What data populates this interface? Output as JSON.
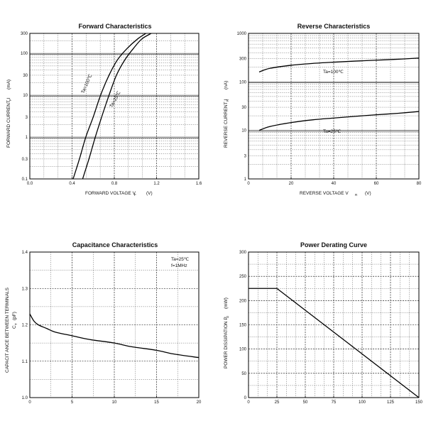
{
  "chart_data": [
    {
      "type": "line",
      "title": "Forward   Characteristics",
      "xlabel": "FORWARD VOLTAGE  V",
      "xlabel_sub": "F",
      "xlabel_unit": "(V)",
      "ylabel": "FORWARD CURRENT  I",
      "ylabel_sub": "F",
      "ylabel_unit": "(mA)",
      "xlim": [
        0,
        1.6
      ],
      "ylim": [
        0.1,
        300
      ],
      "yscale": "log",
      "x_ticks": [
        "0.0",
        "0.4",
        "0.8",
        "1.2",
        "1.6"
      ],
      "y_ticks": [
        "0.1",
        "0.3",
        "1",
        "3",
        "10",
        "30",
        "100",
        "300"
      ],
      "series": [
        {
          "name": "Ta=100℃",
          "x": [
            0.41,
            0.47,
            0.53,
            0.6,
            0.67,
            0.75,
            0.83,
            0.92,
            1.02,
            1.1
          ],
          "y": [
            0.1,
            0.3,
            1,
            3,
            10,
            30,
            70,
            130,
            220,
            300
          ]
        },
        {
          "name": "Ta=25℃",
          "x": [
            0.5,
            0.56,
            0.62,
            0.68,
            0.75,
            0.82,
            0.9,
            0.98,
            1.06,
            1.15
          ],
          "y": [
            0.1,
            0.3,
            1,
            3,
            10,
            30,
            70,
            130,
            220,
            300
          ]
        }
      ],
      "annotations": [
        "Ta=100℃",
        "Ta=25℃"
      ]
    },
    {
      "type": "line",
      "title": "Reverse   Characteristics",
      "xlabel": "REVERSE VOLTAGE  V",
      "xlabel_sub": "R",
      "xlabel_unit": "(V)",
      "ylabel": "REVERSE CURRENT  I",
      "ylabel_sub": "R",
      "ylabel_unit": "(nA)",
      "xlim": [
        0,
        80
      ],
      "ylim": [
        1,
        1000
      ],
      "yscale": "log",
      "x_ticks": [
        "0",
        "20",
        "40",
        "60",
        "80"
      ],
      "y_ticks": [
        "1",
        "3",
        "10",
        "30",
        "100",
        "300",
        "1000"
      ],
      "series": [
        {
          "name": "Ta=100℃",
          "x": [
            5,
            10,
            20,
            30,
            40,
            50,
            60,
            70,
            80
          ],
          "y": [
            160,
            190,
            220,
            240,
            255,
            268,
            280,
            293,
            310
          ]
        },
        {
          "name": "Ta=25℃",
          "x": [
            5,
            10,
            20,
            30,
            40,
            50,
            60,
            70,
            80
          ],
          "y": [
            10,
            12,
            14.5,
            16.5,
            18,
            19.5,
            21,
            22.5,
            24.5
          ]
        }
      ],
      "annotations": [
        "Ta=100℃",
        "Ta=25℃"
      ]
    },
    {
      "type": "line",
      "title": "Capacitance Characteristics",
      "xlabel": "",
      "ylabel": "CAPACIT ANCE BETWEEN TERMINALS",
      "ylabel2": "C",
      "ylabel2_sub": "T",
      "ylabel2_unit": "(pF)",
      "xlim": [
        0,
        20
      ],
      "ylim": [
        1.0,
        1.4
      ],
      "x_ticks": [
        "0",
        "5",
        "10",
        "15",
        "20"
      ],
      "y_ticks": [
        "1.0",
        "1.1",
        "1.2",
        "1.3",
        "1.4"
      ],
      "series": [
        {
          "name": "C",
          "x": [
            0,
            0.5,
            1,
            2,
            3,
            5,
            7,
            10,
            12,
            15,
            17,
            20
          ],
          "y": [
            1.23,
            1.21,
            1.2,
            1.19,
            1.18,
            1.17,
            1.16,
            1.15,
            1.14,
            1.13,
            1.12,
            1.11
          ]
        }
      ],
      "annotations": [
        "Ta=25℃",
        "f=1MHz"
      ]
    },
    {
      "type": "line",
      "title": "Power Derating Curve",
      "xlabel": "",
      "ylabel": "POWER DISSIPATION  P",
      "ylabel_sub": "D",
      "ylabel_unit": "(mW)",
      "xlim": [
        0,
        150
      ],
      "ylim": [
        0,
        300
      ],
      "x_ticks": [
        "0",
        "25",
        "50",
        "75",
        "100",
        "125",
        "150"
      ],
      "y_ticks": [
        "0",
        "50",
        "100",
        "150",
        "200",
        "250",
        "300"
      ],
      "series": [
        {
          "name": "PD",
          "x": [
            0,
            25,
            150
          ],
          "y": [
            225,
            225,
            0
          ]
        }
      ]
    }
  ]
}
